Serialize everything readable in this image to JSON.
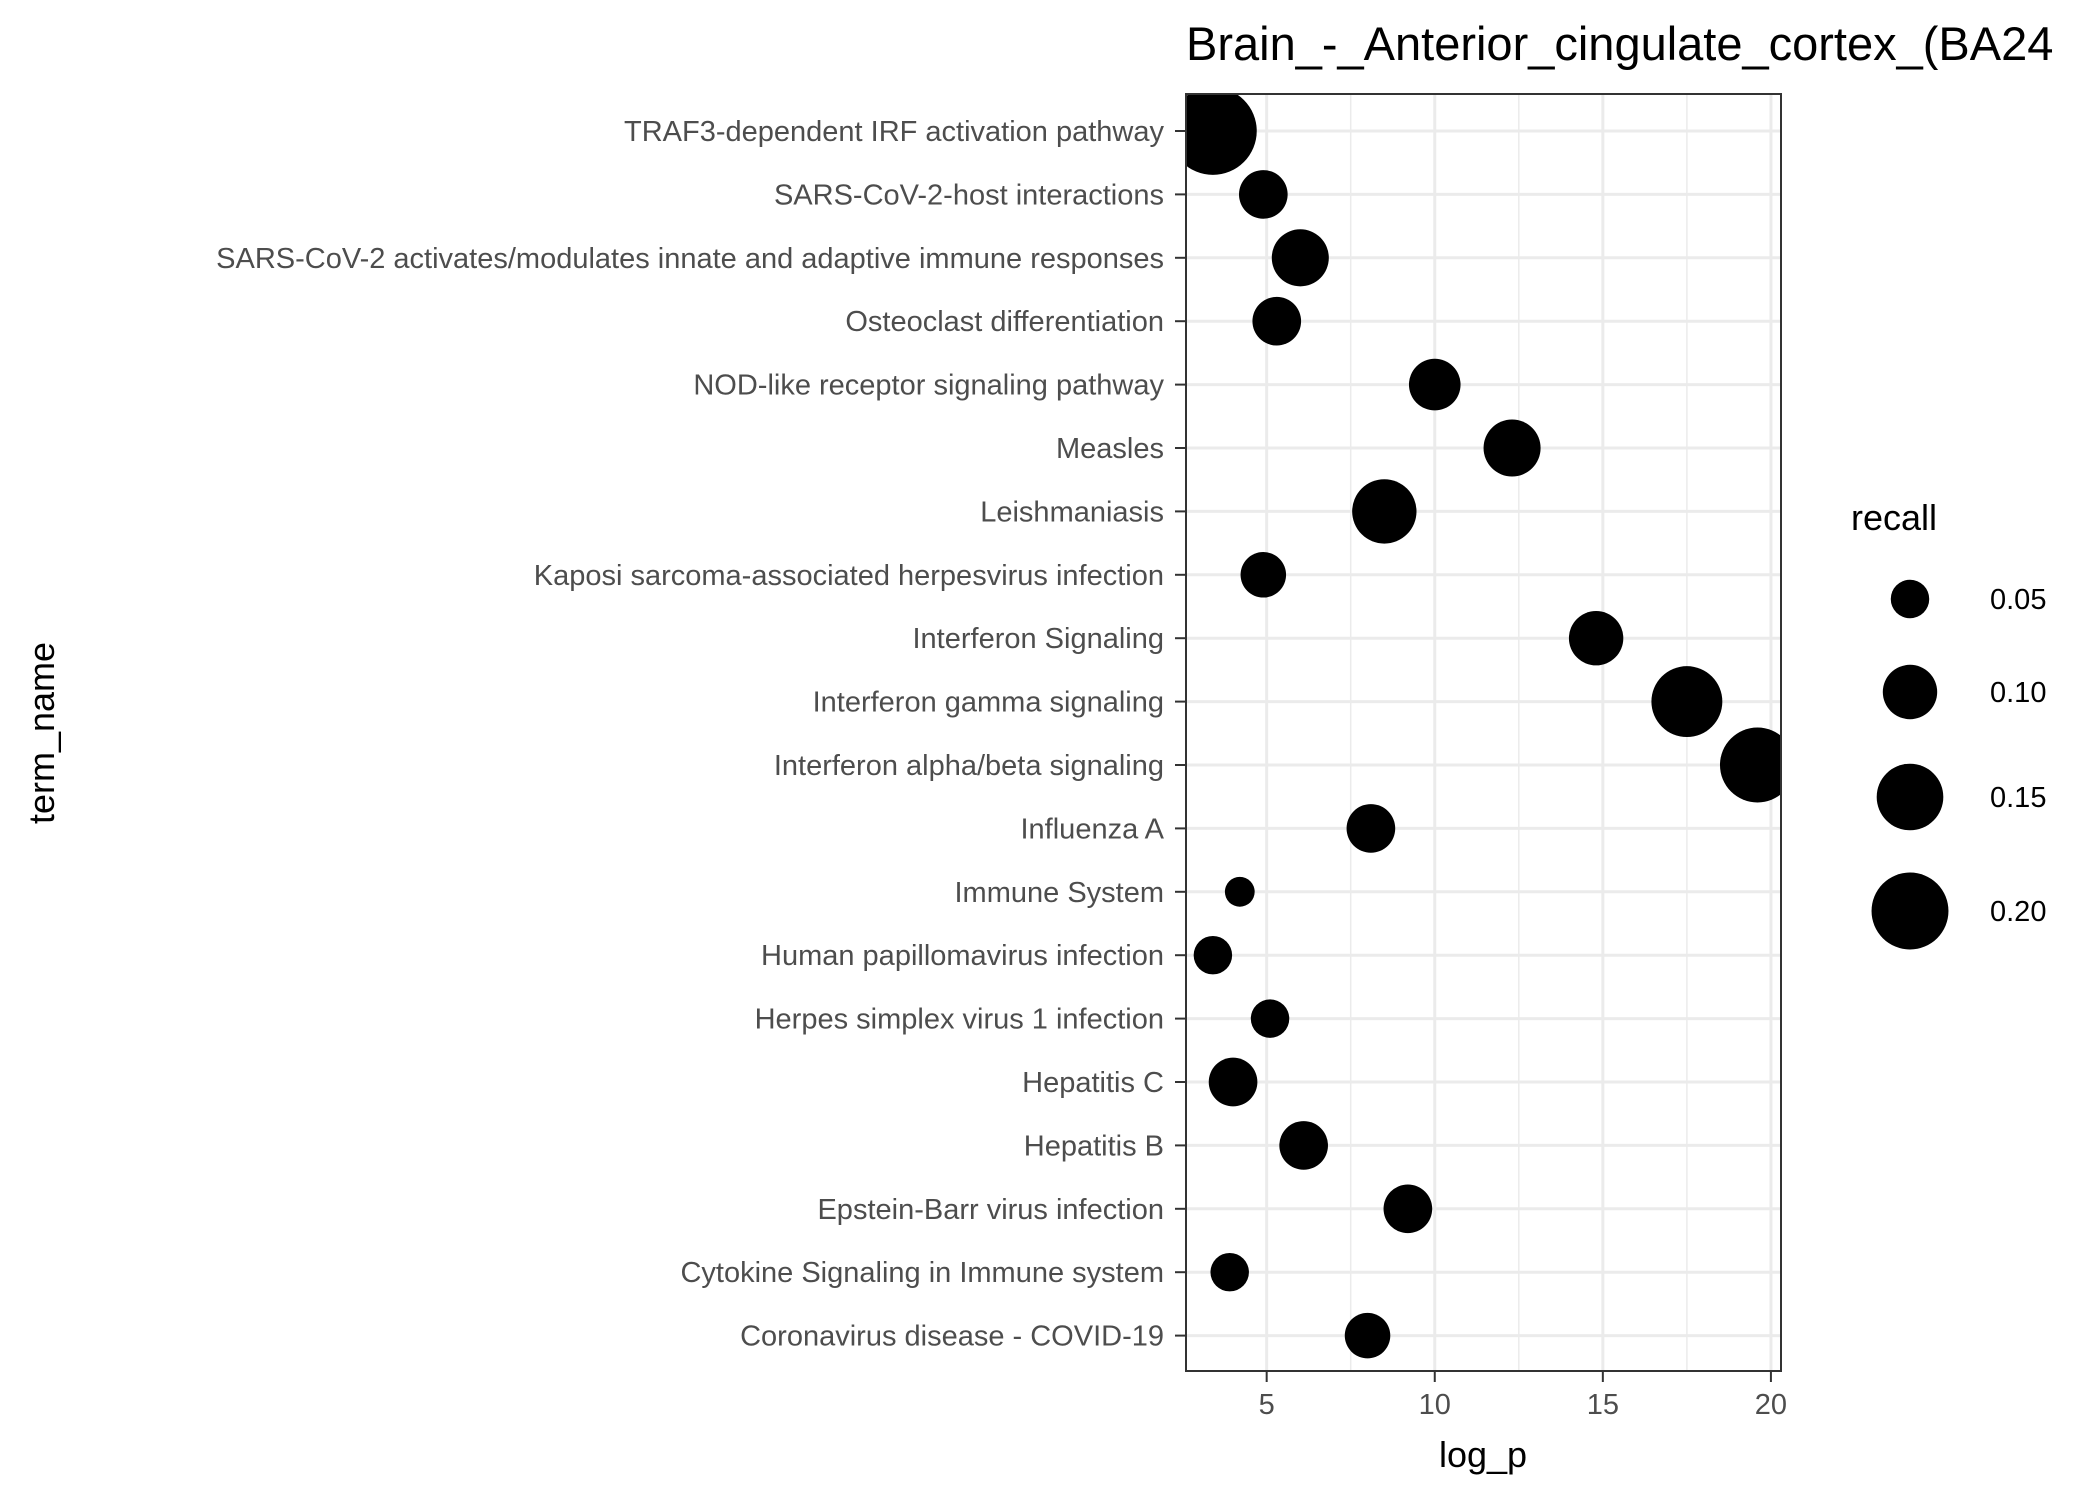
{
  "chart_data": {
    "type": "scatter",
    "title": "Brain_-_Anterior_cingulate_cortex_(BA24",
    "xlabel": "log_p",
    "ylabel": "term_name",
    "xlim": [
      2.6,
      20.3
    ],
    "x_ticks": [
      5,
      10,
      15,
      20
    ],
    "grid": true,
    "size_variable": "recall",
    "legend": {
      "title": "recall",
      "position": "right",
      "entries": [
        {
          "label": "0.05",
          "value": 0.05
        },
        {
          "label": "0.10",
          "value": 0.1
        },
        {
          "label": "0.15",
          "value": 0.15
        },
        {
          "label": "0.20",
          "value": 0.2
        }
      ]
    },
    "points": [
      {
        "term_name": "TRAF3-dependent IRF activation pathway",
        "log_p": 3.4,
        "recall": 0.26
      },
      {
        "term_name": "SARS-CoV-2-host interactions",
        "log_p": 4.9,
        "recall": 0.08
      },
      {
        "term_name": "SARS-CoV-2 activates/modulates innate and adaptive immune responses",
        "log_p": 6.0,
        "recall": 0.11
      },
      {
        "term_name": "Osteoclast differentiation",
        "log_p": 5.3,
        "recall": 0.08
      },
      {
        "term_name": "NOD-like receptor signaling pathway",
        "log_p": 10.0,
        "recall": 0.09
      },
      {
        "term_name": "Measles",
        "log_p": 12.3,
        "recall": 0.11
      },
      {
        "term_name": "Leishmaniasis",
        "log_p": 8.5,
        "recall": 0.14
      },
      {
        "term_name": "Kaposi sarcoma-associated herpesvirus infection",
        "log_p": 4.9,
        "recall": 0.07
      },
      {
        "term_name": "Interferon Signaling",
        "log_p": 14.8,
        "recall": 0.1
      },
      {
        "term_name": "Interferon gamma signaling",
        "log_p": 17.5,
        "recall": 0.17
      },
      {
        "term_name": "Interferon alpha/beta signaling",
        "log_p": 19.6,
        "recall": 0.19
      },
      {
        "term_name": "Influenza A",
        "log_p": 8.1,
        "recall": 0.08
      },
      {
        "term_name": "Immune System",
        "log_p": 4.2,
        "recall": 0.03
      },
      {
        "term_name": "Human papillomavirus infection",
        "log_p": 3.4,
        "recall": 0.05
      },
      {
        "term_name": "Herpes simplex virus 1 infection",
        "log_p": 5.1,
        "recall": 0.05
      },
      {
        "term_name": "Hepatitis C",
        "log_p": 4.0,
        "recall": 0.08
      },
      {
        "term_name": "Hepatitis B",
        "log_p": 6.1,
        "recall": 0.08
      },
      {
        "term_name": "Epstein-Barr virus infection",
        "log_p": 9.2,
        "recall": 0.08
      },
      {
        "term_name": "Cytokine Signaling in Immune system",
        "log_p": 3.9,
        "recall": 0.05
      },
      {
        "term_name": "Coronavirus disease - COVID-19",
        "log_p": 8.0,
        "recall": 0.07
      }
    ]
  },
  "colors": {
    "point": "#000000",
    "grid": "#ebebeb",
    "panel_border": "#333333",
    "tick_text": "#4d4d4d",
    "background": "#ffffff"
  }
}
